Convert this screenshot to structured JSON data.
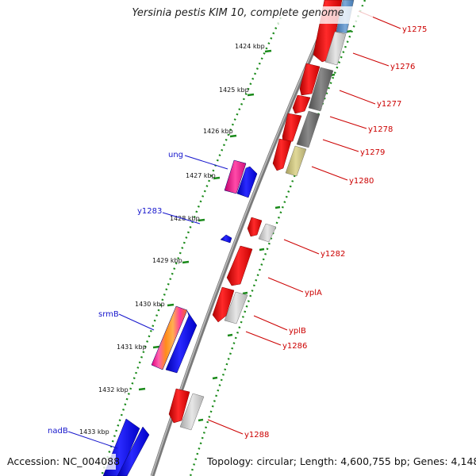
{
  "title": "Yersinia pestis KIM 10, complete genome",
  "footer": {
    "accession": "Accession: NC_004088",
    "topology": "Topology: circular; Length: 4,600,755 bp; Genes: 4,148"
  },
  "colors": {
    "backbone": "#8c8c8c",
    "tick": "#1a8a1a",
    "forward_gene": "#1010e8",
    "reverse_gene": "#e60000",
    "label_blue": "#1515cc",
    "label_red": "#cc0000"
  },
  "ticks": [
    "1424 kbp",
    "1425 kbp",
    "1426 kbp",
    "1427 kbp",
    "1428 kbp",
    "1429 kbp",
    "1430 kbp",
    "1431 kbp",
    "1432 kbp",
    "1433 kbp"
  ],
  "left_labels": [
    "ung",
    "y1283",
    "srmB",
    "nadB"
  ],
  "right_labels": [
    "y1275",
    "y1276",
    "y1277",
    "y1278",
    "y1279",
    "y1280",
    "y1282",
    "yplA",
    "yplB",
    "y1286",
    "y1288"
  ]
}
